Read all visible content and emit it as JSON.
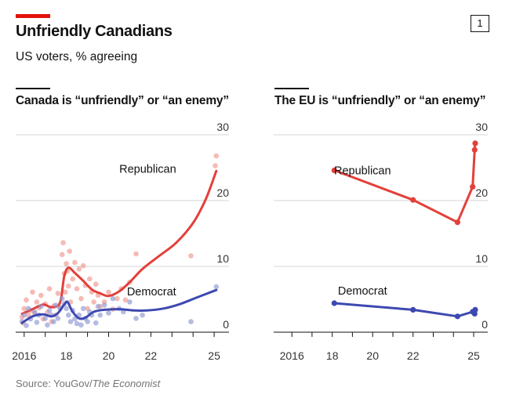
{
  "header": {
    "title": "Unfriendly Canadians",
    "subtitle": "US voters, % agreeing",
    "chart_number": "1"
  },
  "source": {
    "prefix": "Source: YouGov/",
    "publication": "The Economist"
  },
  "colors": {
    "republican": "#e3403a",
    "democrat": "#3d49b0",
    "republican_dots": "#f0968f",
    "democrat_dots": "#8e98d3",
    "grid": "#d4d4d4",
    "accent": "#e3120b"
  },
  "chart_data": [
    {
      "type": "scatter",
      "title": "Canada is “unfriendly” or “an enemy”",
      "xlabel": "",
      "ylabel": "",
      "xlim": [
        2015.6,
        2025.7
      ],
      "ylim": [
        0,
        30
      ],
      "y_ticks": [
        0,
        10,
        20,
        30
      ],
      "x_ticks": [
        {
          "value": 2016,
          "label": "2016"
        },
        {
          "value": 2018,
          "label": "18"
        },
        {
          "value": 2020,
          "label": "20"
        },
        {
          "value": 2022,
          "label": "22"
        },
        {
          "value": 2025,
          "label": "25"
        }
      ],
      "series": [
        {
          "name": "Republican",
          "label_x": 2023.2,
          "label_y": 24.2,
          "trend": [
            [
              2015.9,
              2.8
            ],
            [
              2016.4,
              3.5
            ],
            [
              2016.9,
              4.2
            ],
            [
              2017.3,
              3.8
            ],
            [
              2017.7,
              4.5
            ],
            [
              2017.9,
              8.5
            ],
            [
              2018.1,
              9.8
            ],
            [
              2018.4,
              9.0
            ],
            [
              2018.8,
              7.8
            ],
            [
              2019.2,
              6.5
            ],
            [
              2019.6,
              5.9
            ],
            [
              2020.0,
              5.5
            ],
            [
              2020.5,
              6.2
            ],
            [
              2021.0,
              7.6
            ],
            [
              2021.6,
              9.6
            ],
            [
              2022.4,
              11.6
            ],
            [
              2023.2,
              13.6
            ],
            [
              2024.0,
              16.6
            ],
            [
              2024.6,
              20.2
            ],
            [
              2025.1,
              24.5
            ]
          ],
          "points": [
            [
              2015.9,
              2.3
            ],
            [
              2015.95,
              1.4
            ],
            [
              2016.0,
              3.6
            ],
            [
              2016.1,
              4.9
            ],
            [
              2016.2,
              2.6
            ],
            [
              2016.3,
              3.3
            ],
            [
              2016.4,
              6.1
            ],
            [
              2016.5,
              2.9
            ],
            [
              2016.6,
              4.6
            ],
            [
              2016.7,
              3.7
            ],
            [
              2016.8,
              5.6
            ],
            [
              2016.9,
              2.0
            ],
            [
              2017.0,
              4.3
            ],
            [
              2017.1,
              3.0
            ],
            [
              2017.2,
              6.6
            ],
            [
              2017.3,
              1.6
            ],
            [
              2017.4,
              4.0
            ],
            [
              2017.5,
              2.6
            ],
            [
              2017.6,
              5.9
            ],
            [
              2017.7,
              3.8
            ],
            [
              2017.8,
              11.8
            ],
            [
              2017.85,
              13.6
            ],
            [
              2017.9,
              8.9
            ],
            [
              2017.95,
              6.1
            ],
            [
              2018.0,
              10.4
            ],
            [
              2018.05,
              9.3
            ],
            [
              2018.1,
              7.0
            ],
            [
              2018.15,
              12.3
            ],
            [
              2018.2,
              4.6
            ],
            [
              2018.3,
              8.1
            ],
            [
              2018.4,
              10.6
            ],
            [
              2018.5,
              6.6
            ],
            [
              2018.6,
              9.6
            ],
            [
              2018.7,
              5.1
            ],
            [
              2018.8,
              10.1
            ],
            [
              2018.9,
              7.1
            ],
            [
              2019.0,
              3.6
            ],
            [
              2019.1,
              8.1
            ],
            [
              2019.2,
              6.1
            ],
            [
              2019.3,
              4.6
            ],
            [
              2019.4,
              7.3
            ],
            [
              2019.5,
              5.6
            ],
            [
              2019.6,
              3.9
            ],
            [
              2019.8,
              4.6
            ],
            [
              2020.0,
              6.1
            ],
            [
              2020.2,
              3.5
            ],
            [
              2020.4,
              5.1
            ],
            [
              2020.6,
              6.6
            ],
            [
              2020.8,
              4.9
            ],
            [
              2021.0,
              7.6
            ],
            [
              2021.3,
              11.9
            ],
            [
              2023.9,
              11.6
            ],
            [
              2025.05,
              25.3
            ],
            [
              2025.1,
              26.8
            ]
          ]
        },
        {
          "name": "Democrat",
          "label_x": 2023.2,
          "label_y": 5.6,
          "trend": [
            [
              2015.9,
              1.4
            ],
            [
              2016.4,
              2.4
            ],
            [
              2016.9,
              2.7
            ],
            [
              2017.3,
              2.4
            ],
            [
              2017.6,
              2.9
            ],
            [
              2017.9,
              4.2
            ],
            [
              2018.05,
              4.6
            ],
            [
              2018.3,
              3.1
            ],
            [
              2018.6,
              2.1
            ],
            [
              2018.9,
              2.2
            ],
            [
              2019.3,
              3.1
            ],
            [
              2019.8,
              3.4
            ],
            [
              2020.5,
              3.5
            ],
            [
              2021.2,
              3.3
            ],
            [
              2021.8,
              3.3
            ],
            [
              2022.6,
              3.6
            ],
            [
              2023.4,
              4.3
            ],
            [
              2024.2,
              5.3
            ],
            [
              2025.1,
              6.4
            ]
          ],
          "points": [
            [
              2015.9,
              1.6
            ],
            [
              2016.0,
              2.6
            ],
            [
              2016.1,
              1.0
            ],
            [
              2016.2,
              3.6
            ],
            [
              2016.3,
              2.0
            ],
            [
              2016.5,
              3.1
            ],
            [
              2016.6,
              1.5
            ],
            [
              2016.7,
              2.6
            ],
            [
              2016.8,
              3.9
            ],
            [
              2017.0,
              2.1
            ],
            [
              2017.1,
              1.1
            ],
            [
              2017.2,
              3.3
            ],
            [
              2017.3,
              2.6
            ],
            [
              2017.4,
              1.6
            ],
            [
              2017.5,
              4.1
            ],
            [
              2017.6,
              2.1
            ],
            [
              2017.7,
              3.6
            ],
            [
              2017.8,
              5.1
            ],
            [
              2017.9,
              4.3
            ],
            [
              2018.0,
              3.6
            ],
            [
              2018.1,
              2.6
            ],
            [
              2018.2,
              1.6
            ],
            [
              2018.3,
              3.3
            ],
            [
              2018.4,
              2.0
            ],
            [
              2018.5,
              1.3
            ],
            [
              2018.6,
              2.6
            ],
            [
              2018.7,
              1.1
            ],
            [
              2018.8,
              3.6
            ],
            [
              2018.9,
              2.1
            ],
            [
              2019.0,
              1.6
            ],
            [
              2019.1,
              3.1
            ],
            [
              2019.2,
              2.6
            ],
            [
              2019.4,
              1.4
            ],
            [
              2019.5,
              3.9
            ],
            [
              2019.6,
              2.6
            ],
            [
              2019.8,
              4.1
            ],
            [
              2020.0,
              2.9
            ],
            [
              2020.2,
              5.1
            ],
            [
              2020.5,
              3.6
            ],
            [
              2020.7,
              3.1
            ],
            [
              2021.0,
              4.6
            ],
            [
              2021.3,
              2.1
            ],
            [
              2021.6,
              2.6
            ],
            [
              2023.9,
              1.6
            ],
            [
              2025.1,
              6.9
            ]
          ]
        }
      ]
    },
    {
      "type": "line",
      "title": "The EU is “unfriendly” or “an enemy”",
      "xlabel": "",
      "ylabel": "",
      "xlim": [
        2015.1,
        2025.7
      ],
      "ylim": [
        0,
        30
      ],
      "y_ticks": [
        0,
        10,
        20,
        30
      ],
      "x_ticks": [
        {
          "value": 2016,
          "label": "2016"
        },
        {
          "value": 2018,
          "label": "18"
        },
        {
          "value": 2020,
          "label": "20"
        },
        {
          "value": 2022,
          "label": "22"
        },
        {
          "value": 2025,
          "label": "25"
        }
      ],
      "series": [
        {
          "name": "Republican",
          "label_x": 2019.5,
          "label_y": 24.0,
          "values": [
            [
              2018.1,
              24.6
            ],
            [
              2022.0,
              20.1
            ],
            [
              2024.2,
              16.7
            ],
            [
              2024.95,
              22.1
            ],
            [
              2025.05,
              27.7
            ],
            [
              2025.08,
              28.7
            ]
          ]
        },
        {
          "name": "Democrat",
          "label_x": 2019.5,
          "label_y": 5.7,
          "values": [
            [
              2018.1,
              4.4
            ],
            [
              2022.0,
              3.4
            ],
            [
              2024.2,
              2.4
            ],
            [
              2024.95,
              3.1
            ],
            [
              2025.05,
              2.8
            ],
            [
              2025.08,
              3.4
            ]
          ]
        }
      ]
    }
  ]
}
